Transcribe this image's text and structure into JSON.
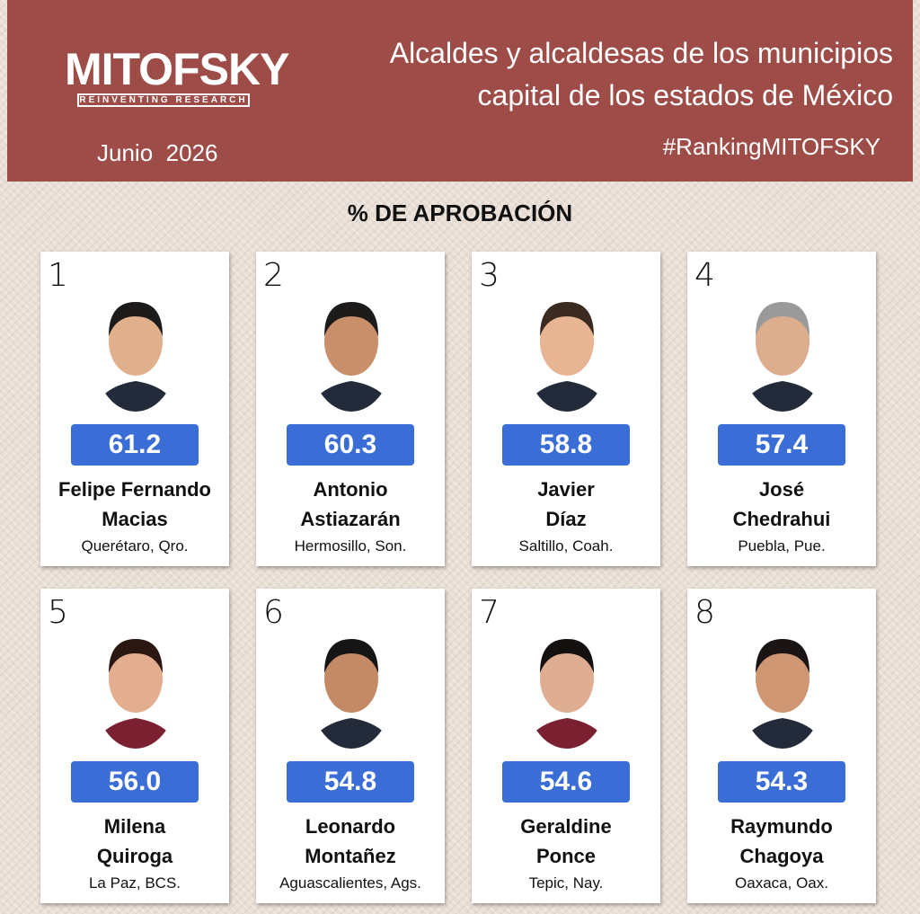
{
  "header": {
    "logo": "MITOFSKY",
    "tagline": "REINVENTING RESEARCH",
    "date": "Junio  2026",
    "title_lines": [
      "Alcaldes y alcaldesas de los municipios",
      "capital de los estados de México"
    ],
    "hashtag": "#RankingMITOFSKY"
  },
  "subtitle": "% DE APROBACIÓN",
  "cards": [
    {
      "rank": "1",
      "score": "61.2",
      "name_lines": [
        "Felipe Fernando",
        "Macias"
      ],
      "place": "Querétaro, Qro."
    },
    {
      "rank": "2",
      "score": "60.3",
      "name_lines": [
        "Antonio",
        "Astiazarán"
      ],
      "place": "Hermosillo, Son."
    },
    {
      "rank": "3",
      "score": "58.8",
      "name_lines": [
        "Javier",
        "Díaz"
      ],
      "place": "Saltillo, Coah."
    },
    {
      "rank": "4",
      "score": "57.4",
      "name_lines": [
        "José",
        "Chedrahui"
      ],
      "place": "Puebla, Pue."
    },
    {
      "rank": "5",
      "score": "56.0",
      "name_lines": [
        "Milena",
        "Quiroga"
      ],
      "place": "La Paz, BCS."
    },
    {
      "rank": "6",
      "score": "54.8",
      "name_lines": [
        "Leonardo",
        "Montañez"
      ],
      "place": "Aguascalientes, Ags."
    },
    {
      "rank": "7",
      "score": "54.6",
      "name_lines": [
        "Geraldine",
        "Ponce"
      ],
      "place": "Tepic, Nay."
    },
    {
      "rank": "8",
      "score": "54.3",
      "name_lines": [
        "Raymundo",
        "Chagoya"
      ],
      "place": "Oaxaca, Oax."
    }
  ]
}
